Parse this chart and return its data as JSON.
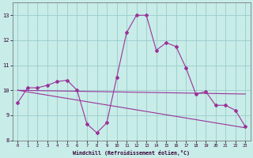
{
  "xlabel": "Windchill (Refroidissement éolien,°C)",
  "bg_color": "#c8ece8",
  "line_color": "#993399",
  "grid_color": "#99cccc",
  "hours": [
    0,
    1,
    2,
    3,
    4,
    5,
    6,
    7,
    8,
    9,
    10,
    11,
    12,
    13,
    14,
    15,
    16,
    17,
    18,
    19,
    20,
    21,
    22,
    23
  ],
  "windchill": [
    9.5,
    10.1,
    10.1,
    10.2,
    10.35,
    10.4,
    10.0,
    8.65,
    8.3,
    8.7,
    10.5,
    12.3,
    13.0,
    13.0,
    11.6,
    11.9,
    11.75,
    10.9,
    9.85,
    9.95,
    9.4,
    9.4,
    9.2,
    8.55
  ],
  "trend1_x": [
    0,
    23
  ],
  "trend1_y": [
    10.0,
    9.85
  ],
  "trend2_x": [
    0,
    23
  ],
  "trend2_y": [
    10.0,
    8.5
  ],
  "ylim": [
    8.0,
    13.5
  ],
  "xlim_min": -0.5,
  "xlim_max": 23.5,
  "yticks": [
    8,
    9,
    10,
    11,
    12,
    13
  ],
  "xticks": [
    0,
    1,
    2,
    3,
    4,
    5,
    6,
    7,
    8,
    9,
    10,
    11,
    12,
    13,
    14,
    15,
    16,
    17,
    18,
    19,
    20,
    21,
    22,
    23
  ]
}
